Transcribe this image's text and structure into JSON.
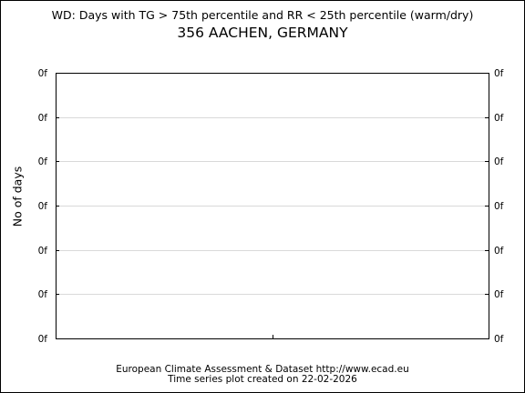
{
  "chart_data": {
    "type": "line",
    "title": "WD: Days with TG > 75th percentile and RR < 25th percentile (warm/dry)",
    "subtitle": "356 AACHEN, GERMANY",
    "xlabel": "",
    "ylabel": "No of days",
    "x": [],
    "series": [],
    "y_tick_labels": [
      "0f",
      "0f",
      "0f",
      "0f",
      "0f",
      "0f",
      "0f"
    ],
    "grid": true,
    "legend": "none"
  },
  "footer": {
    "line1": "European Climate Assessment & Dataset  http://www.ecad.eu",
    "line2": "Time series plot created on 22-02-2026"
  }
}
